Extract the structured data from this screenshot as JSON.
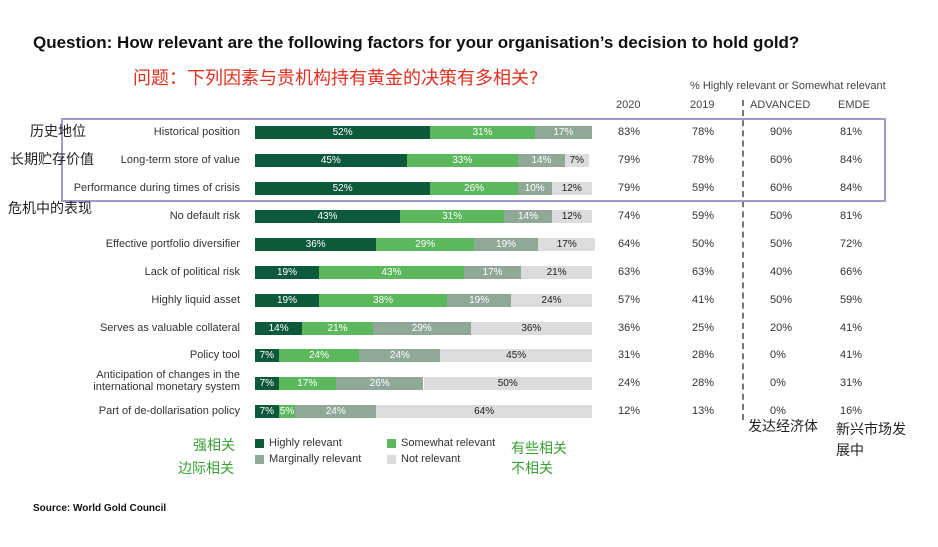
{
  "title": "Question: How relevant are the following factors for your organisation’s decision to hold gold?",
  "cn_title": "问题：下列因素与贵机构持有黄金的决策有多相关?",
  "header_note": "% Highly relevant or Somewhat relevant",
  "columns": [
    "2020",
    "2019",
    "ADVANCED",
    "EMDE"
  ],
  "colors": {
    "highly": "#0d5a3a",
    "somewhat": "#5cb85c",
    "marginally": "#8fa898",
    "not": "#dcdcdc",
    "box": "#a09ac8",
    "cn_red": "#e03020",
    "cn_green": "#3aa035"
  },
  "chart_data": {
    "type": "bar",
    "orientation": "horizontal-stacked",
    "series_names": [
      "Highly relevant",
      "Somewhat relevant",
      "Marginally relevant",
      "Not relevant"
    ],
    "rows": [
      {
        "label": "Historical position",
        "values": [
          52,
          31,
          17,
          0
        ],
        "labels": [
          "52%",
          "31%",
          "17%",
          ""
        ],
        "y2020": "83%",
        "y2019": "78%",
        "advanced": "90%",
        "emde": "81%"
      },
      {
        "label": "Long-term store of value",
        "values": [
          45,
          33,
          14,
          7
        ],
        "labels": [
          "45%",
          "33%",
          "14%",
          "7%"
        ],
        "y2020": "79%",
        "y2019": "78%",
        "advanced": "60%",
        "emde": "84%"
      },
      {
        "label": "Performance during times of crisis",
        "values": [
          52,
          26,
          10,
          12
        ],
        "labels": [
          "52%",
          "26%",
          "10%",
          "12%"
        ],
        "y2020": "79%",
        "y2019": "59%",
        "advanced": "60%",
        "emde": "84%"
      },
      {
        "label": "No default risk",
        "values": [
          43,
          31,
          14,
          12
        ],
        "labels": [
          "43%",
          "31%",
          "14%",
          "12%"
        ],
        "y2020": "74%",
        "y2019": "59%",
        "advanced": "50%",
        "emde": "81%"
      },
      {
        "label": "Effective portfolio diversifier",
        "values": [
          36,
          29,
          19,
          17
        ],
        "labels": [
          "36%",
          "29%",
          "19%",
          "17%"
        ],
        "y2020": "64%",
        "y2019": "50%",
        "advanced": "50%",
        "emde": "72%"
      },
      {
        "label": "Lack of political risk",
        "values": [
          19,
          43,
          17,
          21
        ],
        "labels": [
          "19%",
          "43%",
          "17%",
          "21%"
        ],
        "y2020": "63%",
        "y2019": "63%",
        "advanced": "40%",
        "emde": "66%"
      },
      {
        "label": "Highly liquid asset",
        "values": [
          19,
          38,
          19,
          24
        ],
        "labels": [
          "19%",
          "38%",
          "19%",
          "24%"
        ],
        "y2020": "57%",
        "y2019": "41%",
        "advanced": "50%",
        "emde": "59%"
      },
      {
        "label": "Serves as valuable collateral",
        "values": [
          14,
          21,
          29,
          36
        ],
        "labels": [
          "14%",
          "21%",
          "29%",
          "36%"
        ],
        "y2020": "36%",
        "y2019": "25%",
        "advanced": "20%",
        "emde": "41%"
      },
      {
        "label": "Policy tool",
        "values": [
          7,
          24,
          24,
          45
        ],
        "labels": [
          "7%",
          "24%",
          "24%",
          "45%"
        ],
        "y2020": "31%",
        "y2019": "28%",
        "advanced": "0%",
        "emde": "41%"
      },
      {
        "label": "Anticipation of changes in the international monetary system",
        "values": [
          7,
          17,
          26,
          50
        ],
        "labels": [
          "7%",
          "17%",
          "26%",
          "50%"
        ],
        "y2020": "24%",
        "y2019": "28%",
        "advanced": "0%",
        "emde": "31%"
      },
      {
        "label": "Part of de-dollarisation policy",
        "values": [
          7,
          5,
          24,
          64
        ],
        "labels": [
          "7%",
          "5%",
          "24%",
          "64%"
        ],
        "y2020": "12%",
        "y2019": "13%",
        "advanced": "0%",
        "emde": "16%"
      }
    ]
  },
  "cn_row_labels": [
    "历史地位",
    "长期贮存价值",
    "危机中的表现"
  ],
  "legend": {
    "highly": "Highly relevant",
    "somewhat": "Somewhat relevant",
    "marginally": "Marginally relevant",
    "not": "Not relevant",
    "cn_highly": "强相关",
    "cn_marginally": "边际相关",
    "cn_somewhat": "有些相关",
    "cn_not": "不相关"
  },
  "cn_col_notes": {
    "advanced": "发达经济体",
    "emde_line1": "新兴市场发",
    "emde_line2": "展中"
  },
  "source": "Source: World Gold Council"
}
